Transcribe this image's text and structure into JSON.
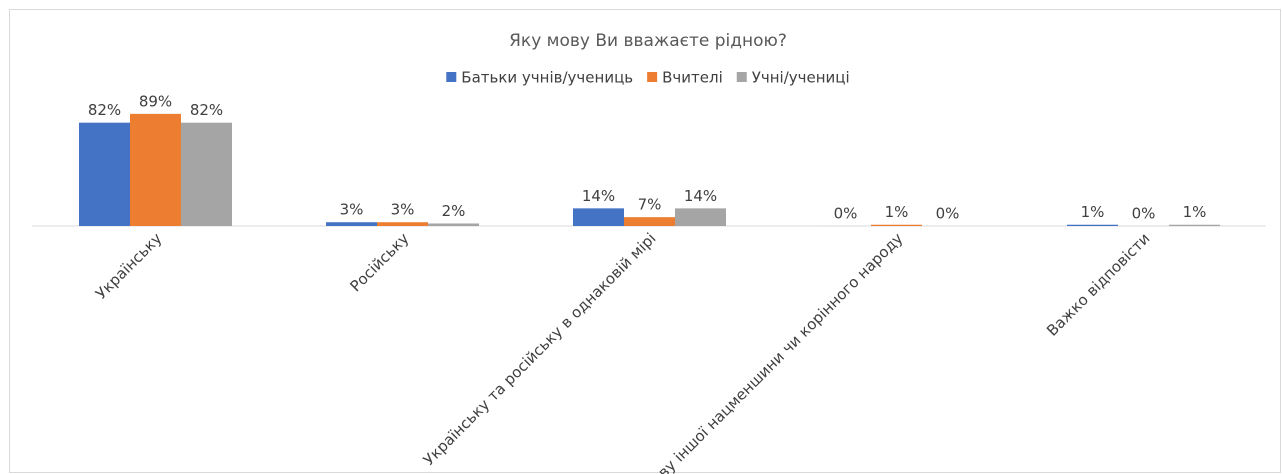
{
  "chart_data": {
    "type": "bar",
    "title": "Яку мову Ви вважаєте рідною?",
    "categories": [
      "Українську",
      "Російську",
      "Українську та російську в однаковій мірі",
      "Мову іншої нацменшини чи корінного народу",
      "Важко відповісти"
    ],
    "series": [
      {
        "name": "Батьки учнів/учениць",
        "color": "#4472c4",
        "values": [
          82,
          3,
          14,
          0,
          1
        ],
        "value_labels": [
          "82%",
          "3%",
          "14%",
          "0%",
          "1%"
        ]
      },
      {
        "name": "Вчителі",
        "color": "#ed7d31",
        "values": [
          89,
          3,
          7,
          1,
          0
        ],
        "value_labels": [
          "89%",
          "3%",
          "7%",
          "1%",
          "0%"
        ]
      },
      {
        "name": "Учні/учениці",
        "color": "#a5a5a5",
        "values": [
          82,
          2,
          14,
          0,
          1
        ],
        "value_labels": [
          "82%",
          "2%",
          "14%",
          "0%",
          "1%"
        ]
      }
    ],
    "legend": "top"
  }
}
